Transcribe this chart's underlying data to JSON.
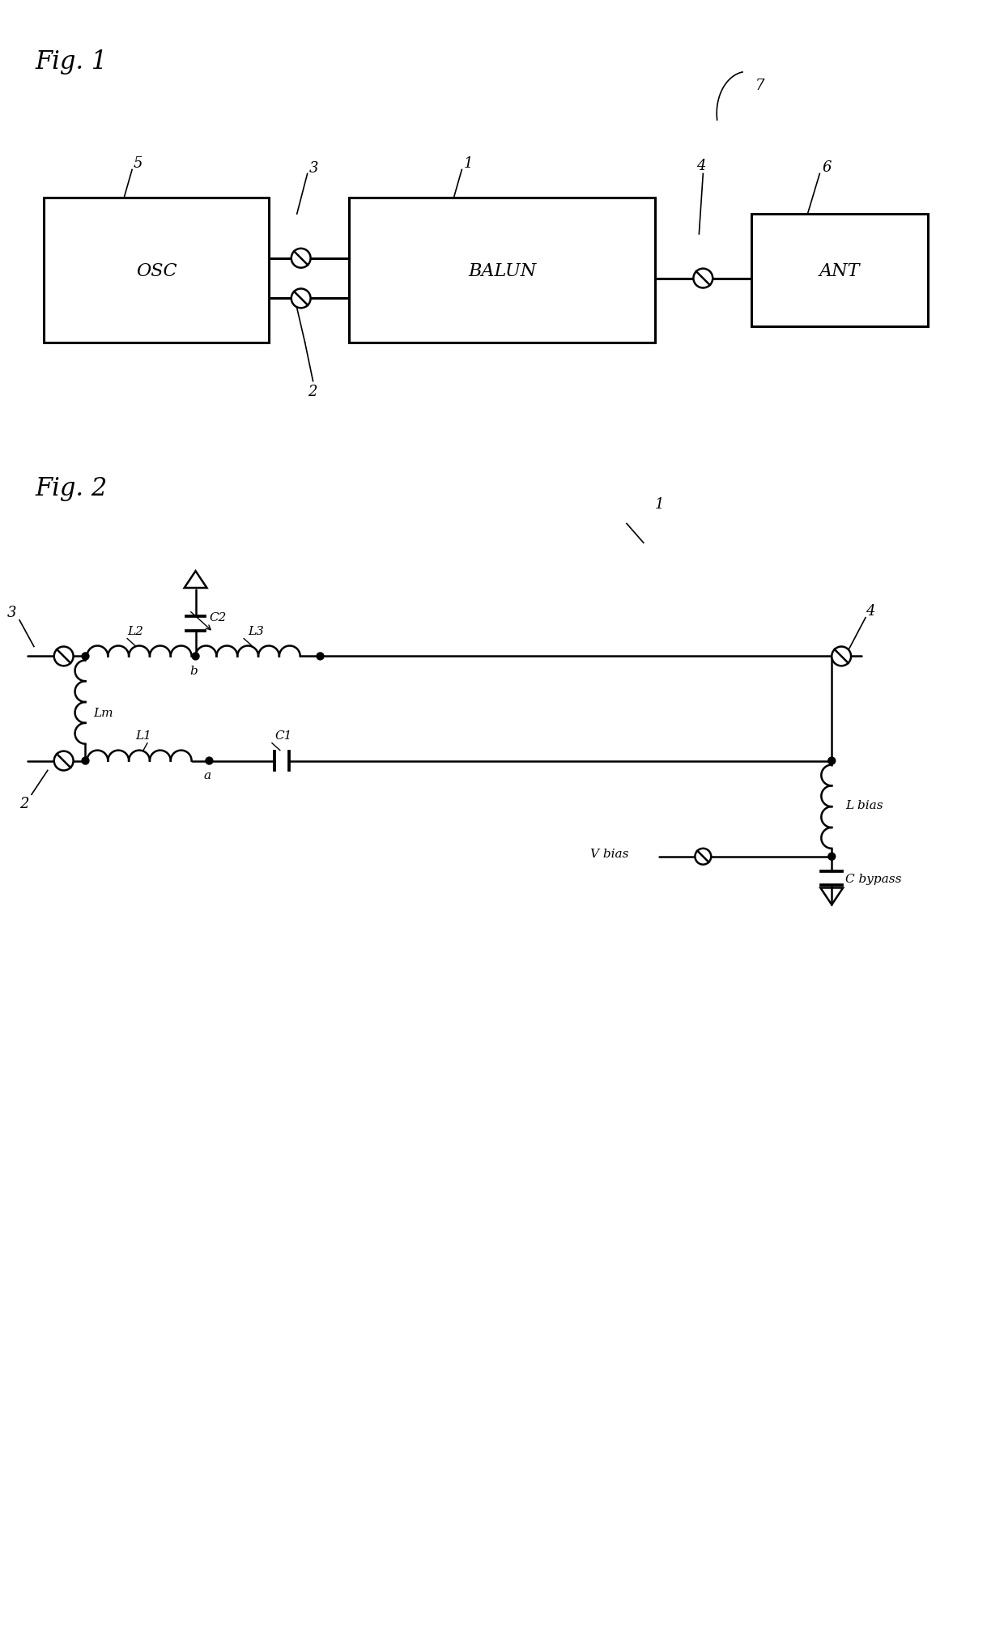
{
  "fig_width": 12.4,
  "fig_height": 20.4,
  "bg_color": "#ffffff",
  "line_color": "#000000",
  "fig1_label": "Fig. 1",
  "fig2_label": "Fig. 2",
  "osc_label": "OSC",
  "balun_label": "BALUN",
  "ant_label": "ANT",
  "fig2_labels": {
    "L1": "L1",
    "L2": "L2",
    "L3": "L3",
    "Lm": "Lm",
    "C1": "C1",
    "C2": "C2",
    "Lbias": "L bias",
    "Cbypass": "C bypass",
    "Vbias": "V bias",
    "a": "a",
    "b": "b"
  }
}
